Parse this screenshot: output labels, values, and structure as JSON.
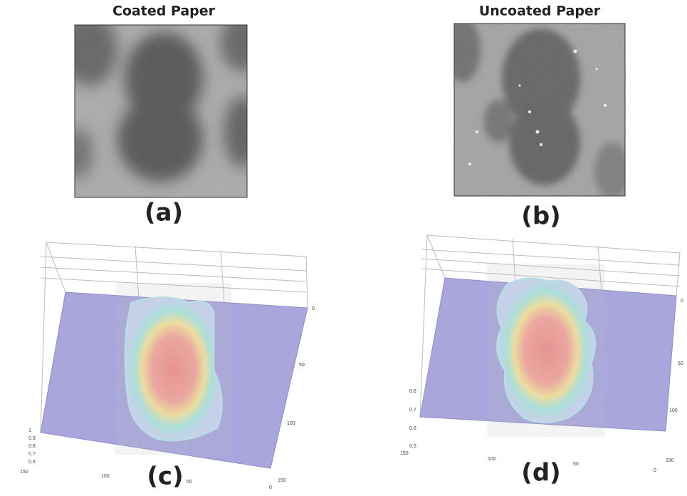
{
  "panels": [
    {
      "title": "Coated Paper",
      "label": "(a)"
    },
    {
      "title": "Uncoated Paper",
      "label": "(b)"
    },
    {
      "label": "(c)",
      "z_ticks": [
        1,
        0.9,
        0.8,
        0.7,
        0.6
      ],
      "x_ticks": [
        150,
        100,
        50,
        0
      ],
      "y_ticks": [
        0,
        50,
        100,
        150
      ]
    },
    {
      "label": "(d)",
      "z_ticks": [
        0.8,
        0.7,
        0.6,
        0.5
      ],
      "x_ticks": [
        150,
        100,
        50,
        0
      ],
      "y_ticks": [
        0,
        50,
        100,
        150
      ]
    }
  ]
}
